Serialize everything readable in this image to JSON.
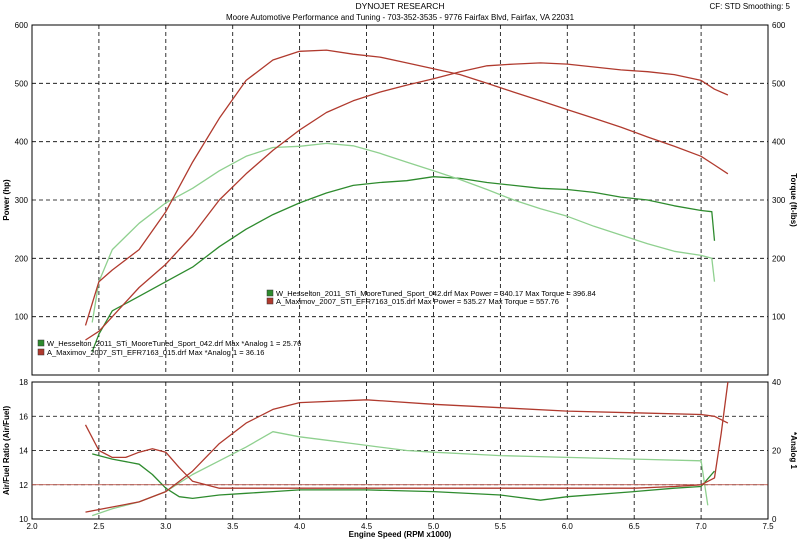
{
  "header": {
    "title": "DYNOJET RESEARCH",
    "subtitle": "Moore Automotive Performance and Tuning - 703-352-3535 - 9776 Fairfax Blvd, Fairfax, VA 22031",
    "settings": "CF: STD   Smoothing: 5"
  },
  "colors": {
    "run1": "#2e8b2e",
    "run2": "#b03a2e",
    "run1_light": "#8fd08f",
    "run2_light": "#c87060",
    "grid": "#000000"
  },
  "chart_data": [
    {
      "type": "line",
      "panel": "top",
      "xlabel": "",
      "ylabel_left": "Power (hp)",
      "ylabel_right": "Torque (ft-lbs)",
      "xlim": [
        2.0,
        7.5
      ],
      "ylim": [
        0,
        600
      ],
      "x_ticks": [
        "2.0",
        "2.5",
        "3.0",
        "3.5",
        "4.0",
        "4.5",
        "5.0",
        "5.5",
        "6.0",
        "6.5",
        "7.0",
        "7.5"
      ],
      "y_ticks_left": [
        "100",
        "200",
        "300",
        "400",
        "500",
        "600"
      ],
      "y_ticks_right": [
        "100",
        "200",
        "300",
        "400",
        "500",
        "600"
      ],
      "grid": true,
      "legend": {
        "position": "center",
        "entries": [
          {
            "text": "W_Hesselton_2011_STi_MooreTuned_Sport_042.drf Max Power = 340.17    Max Torque = 396.84",
            "color": "#2e8b2e"
          },
          {
            "text": "A_Maximov_2007_STI_EFR7163_015.drf Max Power = 535.27    Max Torque = 557.76",
            "color": "#b03a2e"
          }
        ]
      },
      "series": [
        {
          "kind": "power",
          "color": "#2e8b2e",
          "x": [
            2.45,
            2.5,
            2.6,
            2.8,
            3.0,
            3.2,
            3.4,
            3.6,
            3.8,
            4.0,
            4.2,
            4.4,
            4.6,
            4.8,
            5.0,
            5.2,
            5.4,
            5.6,
            5.8,
            6.0,
            6.2,
            6.4,
            6.6,
            6.8,
            7.0,
            7.08,
            7.1
          ],
          "y": [
            40,
            70,
            110,
            135,
            160,
            185,
            220,
            250,
            275,
            295,
            312,
            325,
            330,
            333,
            340,
            337,
            330,
            325,
            320,
            318,
            313,
            305,
            300,
            290,
            282,
            280,
            230
          ]
        },
        {
          "kind": "torque",
          "color": "#8fd08f",
          "x": [
            2.45,
            2.5,
            2.6,
            2.8,
            3.0,
            3.2,
            3.4,
            3.6,
            3.8,
            4.0,
            4.2,
            4.4,
            4.6,
            4.8,
            5.0,
            5.2,
            5.4,
            5.6,
            5.8,
            6.0,
            6.2,
            6.4,
            6.6,
            6.8,
            7.0,
            7.08,
            7.1
          ],
          "y": [
            90,
            160,
            215,
            260,
            295,
            320,
            350,
            375,
            390,
            392,
            397,
            393,
            380,
            365,
            350,
            335,
            318,
            300,
            285,
            272,
            255,
            240,
            225,
            212,
            205,
            200,
            160
          ]
        },
        {
          "kind": "power",
          "color": "#b03a2e",
          "x": [
            2.4,
            2.5,
            2.6,
            2.8,
            3.0,
            3.2,
            3.4,
            3.6,
            3.8,
            4.0,
            4.2,
            4.4,
            4.6,
            4.8,
            5.0,
            5.2,
            5.4,
            5.6,
            5.8,
            6.0,
            6.2,
            6.4,
            6.6,
            6.8,
            7.0,
            7.1,
            7.2
          ],
          "y": [
            60,
            75,
            100,
            150,
            190,
            240,
            300,
            345,
            385,
            420,
            450,
            470,
            485,
            497,
            508,
            520,
            530,
            533,
            535,
            533,
            528,
            523,
            520,
            515,
            505,
            490,
            480
          ]
        },
        {
          "kind": "torque",
          "color": "#b03a2e",
          "x": [
            2.4,
            2.5,
            2.6,
            2.8,
            3.0,
            3.2,
            3.4,
            3.6,
            3.8,
            4.0,
            4.2,
            4.4,
            4.6,
            4.8,
            5.0,
            5.2,
            5.4,
            5.6,
            5.8,
            6.0,
            6.2,
            6.4,
            6.6,
            6.8,
            7.0,
            7.1,
            7.2
          ],
          "y": [
            85,
            160,
            180,
            215,
            280,
            365,
            440,
            505,
            540,
            555,
            557,
            550,
            545,
            535,
            525,
            515,
            500,
            485,
            470,
            455,
            440,
            425,
            408,
            392,
            375,
            360,
            345
          ]
        }
      ]
    },
    {
      "type": "line",
      "panel": "bottom",
      "xlabel": "Engine Speed (RPM x1000)",
      "ylabel_left": "Air/Fuel Ratio (Air/Fuel)",
      "ylabel_right": "*Analog 1",
      "xlim": [
        2.0,
        7.5
      ],
      "ylim_left": [
        10,
        18
      ],
      "ylim_right": [
        0,
        40
      ],
      "x_ticks": [
        "2.0",
        "2.5",
        "3.0",
        "3.5",
        "4.0",
        "4.5",
        "5.0",
        "5.5",
        "6.0",
        "6.5",
        "7.0",
        "7.5"
      ],
      "y_ticks_left": [
        "10",
        "12",
        "14",
        "16",
        "18"
      ],
      "y_ticks_right": [
        "0",
        "20",
        "40"
      ],
      "grid": true,
      "legend": {
        "position": "top-left",
        "entries": [
          {
            "text": "W_Hesselton_2011_STi_MooreTuned_Sport_042.drf Max *Analog 1 = 25.76",
            "color": "#2e8b2e"
          },
          {
            "text": "A_Maximov_2007_STI_EFR7163_015.drf Max *Analog 1 = 36.16",
            "color": "#b03a2e"
          }
        ]
      },
      "series": [
        {
          "kind": "air_fuel",
          "color": "#2e8b2e",
          "x": [
            2.45,
            2.6,
            2.8,
            2.9,
            3.0,
            3.1,
            3.2,
            3.4,
            3.6,
            3.8,
            4.0,
            4.5,
            5.0,
            5.5,
            5.8,
            6.0,
            6.5,
            6.8,
            7.0,
            7.1
          ],
          "y": [
            13.8,
            13.5,
            13.2,
            12.6,
            11.8,
            11.3,
            11.2,
            11.4,
            11.5,
            11.6,
            11.7,
            11.7,
            11.6,
            11.4,
            11.1,
            11.3,
            11.6,
            11.8,
            11.9,
            12.8
          ]
        },
        {
          "kind": "analog",
          "color": "#8fd08f",
          "x": [
            2.45,
            2.6,
            2.8,
            3.0,
            3.2,
            3.4,
            3.6,
            3.8,
            4.0,
            4.2,
            4.4,
            4.6,
            4.8,
            5.0,
            5.5,
            6.0,
            6.5,
            7.0,
            7.05
          ],
          "y": [
            1,
            3,
            5,
            8,
            13,
            17,
            21,
            25.5,
            24,
            23,
            22,
            21,
            20,
            19.5,
            18.5,
            18,
            17.5,
            17,
            4
          ]
        },
        {
          "kind": "air_fuel",
          "color": "#b03a2e",
          "x": [
            2.4,
            2.5,
            2.6,
            2.7,
            2.8,
            2.9,
            3.0,
            3.1,
            3.2,
            3.4,
            3.6,
            3.8,
            4.0,
            4.5,
            5.0,
            5.5,
            6.0,
            6.5,
            6.8,
            7.0,
            7.1,
            7.15,
            7.2
          ],
          "y": [
            15.5,
            14.0,
            13.6,
            13.6,
            13.9,
            14.1,
            13.9,
            13.0,
            12.2,
            11.8,
            11.8,
            11.8,
            11.8,
            11.8,
            11.8,
            11.8,
            11.8,
            11.8,
            11.9,
            12.0,
            12.4,
            15.0,
            18.0
          ]
        },
        {
          "kind": "analog",
          "color": "#b03a2e",
          "x": [
            2.4,
            2.6,
            2.8,
            3.0,
            3.2,
            3.4,
            3.6,
            3.8,
            4.0,
            4.5,
            5.0,
            5.5,
            6.0,
            6.5,
            7.0,
            7.1,
            7.2
          ],
          "y": [
            2,
            3.5,
            5,
            8,
            14,
            22,
            28,
            32,
            34,
            34.8,
            33.5,
            32.5,
            31.5,
            31,
            30.5,
            30,
            28
          ]
        }
      ]
    }
  ]
}
